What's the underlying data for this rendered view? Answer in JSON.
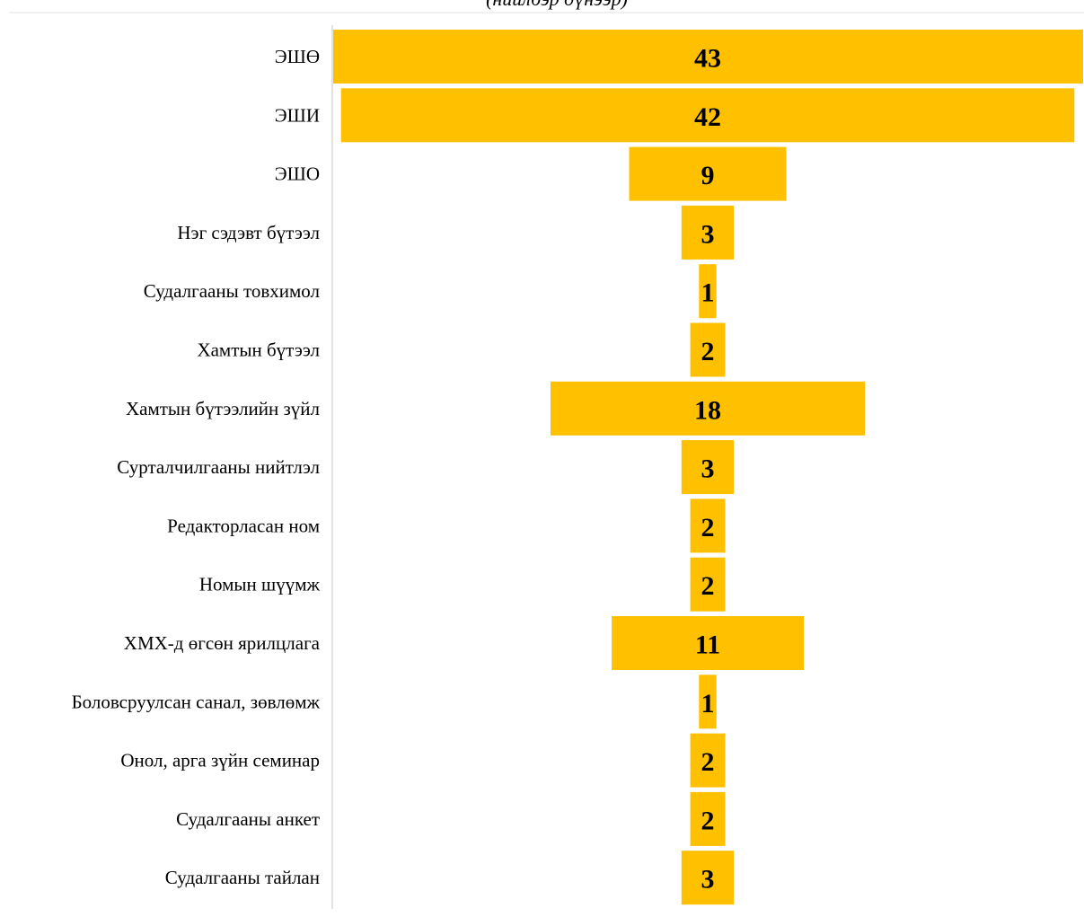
{
  "chart_data": {
    "type": "bar",
    "orientation": "horizontal-centered",
    "subtitle": "(нийлбэр дүнээр)",
    "categories": [
      "ЭШӨ",
      "ЭШИ",
      "ЭШО",
      "Нэг сэдэвт бүтээл",
      "Судалгааны товхимол",
      "Хамтын бүтээл",
      "Хамтын бүтээлийн зүйл",
      "Сурталчилгааны нийтлэл",
      "Редакторласан ном",
      "Номын шүүмж",
      "ХМХ-д өгсөн ярилцлага",
      "Боловсруулсан санал, зөвлөмж",
      "Онол, арга зүйн семинар",
      "Судалгааны анкет",
      "Судалгааны тайлан"
    ],
    "values": [
      43,
      42,
      9,
      3,
      1,
      2,
      18,
      3,
      2,
      2,
      11,
      1,
      2,
      2,
      3
    ],
    "bar_color": "#FFC000",
    "axis_color": "#D9D9D9",
    "grid": false,
    "legend": "none"
  }
}
